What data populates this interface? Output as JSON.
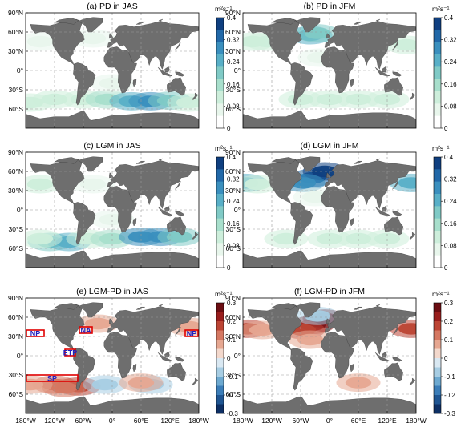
{
  "figure": {
    "panels": [
      {
        "id": "a",
        "title": "(a) PD in JAS",
        "season": "JAS",
        "scale": "seq",
        "unit": "m²s⁻¹",
        "ticks": [
          "0",
          "0.08",
          "0.16",
          "0.24",
          "0.32",
          "0.4"
        ]
      },
      {
        "id": "b",
        "title": "(b) PD in JFM",
        "season": "JFM",
        "scale": "seq",
        "unit": "m²s⁻¹",
        "ticks": [
          "0",
          "0.08",
          "0.16",
          "0.24",
          "0.32",
          "0.4"
        ]
      },
      {
        "id": "c",
        "title": "(c) LGM in JAS",
        "season": "JAS",
        "scale": "seq",
        "unit": "m²s⁻¹",
        "ticks": [
          "0",
          "0.08",
          "0.16",
          "0.24",
          "0.32",
          "0.4"
        ]
      },
      {
        "id": "d",
        "title": "(d) LGM in JFM",
        "season": "JFM",
        "scale": "seq",
        "unit": "m²s⁻¹",
        "ticks": [
          "0",
          "0.08",
          "0.16",
          "0.24",
          "0.32",
          "0.4"
        ]
      },
      {
        "id": "e",
        "title": "(e) LGM-PD in JAS",
        "season": "JAS",
        "scale": "div",
        "unit": "m²s⁻¹",
        "ticks": [
          "-0.3",
          "-0.2",
          "-0.1",
          "0",
          "0.1",
          "0.2",
          "0.3"
        ]
      },
      {
        "id": "f",
        "title": "(f) LGM-PD in JFM",
        "season": "JFM",
        "scale": "div",
        "unit": "m²s⁻¹",
        "ticks": [
          "-0.3",
          "-0.2",
          "-0.1",
          "0",
          "0.1",
          "0.2",
          "0.3"
        ]
      }
    ],
    "lat_ticks": [
      "90°N",
      "60°N",
      "30°N",
      "0°",
      "30°S",
      "60°S"
    ],
    "lon_ticks": [
      "180°W",
      "120°W",
      "60°W",
      "0°",
      "60°E",
      "120°E",
      "180°W"
    ],
    "regions": [
      {
        "label": "NP",
        "lon": [
          -180,
          -140
        ],
        "lat": [
          30,
          40
        ]
      },
      {
        "label": "NA",
        "lon": [
          -70,
          -40
        ],
        "lat": [
          35,
          45
        ]
      },
      {
        "label": "NP",
        "lon": [
          150,
          180
        ],
        "lat": [
          30,
          40
        ]
      },
      {
        "label": "ETP",
        "lon": [
          -100,
          -75
        ],
        "lat": [
          0,
          10
        ]
      },
      {
        "label": "SP",
        "lon": [
          -180,
          -70
        ],
        "lat": [
          -40,
          -30
        ]
      }
    ],
    "colors": {
      "land": "#6e6e6e",
      "seq": [
        "#ffffff",
        "#e8f6ec",
        "#cdeedb",
        "#a8dfcc",
        "#80cac6",
        "#58afc7",
        "#3a8fbe",
        "#2168a8",
        "#0f3f80"
      ],
      "pos": [
        "#f3d8cc",
        "#e6a791",
        "#d57862",
        "#bc4434",
        "#981d1c",
        "#6b0d12"
      ],
      "neg": [
        "#d9e8f2",
        "#a7cde3",
        "#6da9d0",
        "#3b7db8",
        "#1f5592",
        "#0d2f64"
      ],
      "box": "#e00000",
      "label": "#2020c0"
    }
  },
  "chart_data": [
    {
      "panel": "a",
      "type": "heatmap",
      "title": "(a) PD in JAS",
      "unit": "m²s⁻¹",
      "clim": [
        0,
        0.4
      ],
      "xlim": [
        -180,
        180
      ],
      "ylim": [
        -90,
        90
      ],
      "blobs": [
        {
          "lon": -170,
          "lat": -50,
          "value": 0.08
        },
        {
          "lon": -120,
          "lat": -45,
          "value": 0.12
        },
        {
          "lon": -60,
          "lat": -45,
          "value": 0.1
        },
        {
          "lon": -10,
          "lat": -45,
          "value": 0.16
        },
        {
          "lon": 40,
          "lat": -48,
          "value": 0.24
        },
        {
          "lon": 80,
          "lat": -48,
          "value": 0.28
        },
        {
          "lon": 120,
          "lat": -47,
          "value": 0.2
        },
        {
          "lon": 160,
          "lat": -50,
          "value": 0.12
        },
        {
          "lon": -40,
          "lat": 50,
          "value": 0.04
        },
        {
          "lon": -150,
          "lat": 45,
          "value": 0.04
        },
        {
          "lon": 0,
          "lat": -20,
          "value": 0.04
        }
      ]
    },
    {
      "panel": "b",
      "type": "heatmap",
      "title": "(b) PD in JFM",
      "unit": "m²s⁻¹",
      "clim": [
        0,
        0.4
      ],
      "xlim": [
        -180,
        180
      ],
      "ylim": [
        -90,
        90
      ],
      "blobs": [
        {
          "lon": -40,
          "lat": 55,
          "value": 0.24
        },
        {
          "lon": -25,
          "lat": 58,
          "value": 0.2
        },
        {
          "lon": -160,
          "lat": 45,
          "value": 0.12
        },
        {
          "lon": -130,
          "lat": 45,
          "value": 0.08
        },
        {
          "lon": 160,
          "lat": 40,
          "value": 0.1
        },
        {
          "lon": -60,
          "lat": -45,
          "value": 0.08
        },
        {
          "lon": 0,
          "lat": -45,
          "value": 0.08
        },
        {
          "lon": 60,
          "lat": -45,
          "value": 0.1
        },
        {
          "lon": 120,
          "lat": -45,
          "value": 0.08
        },
        {
          "lon": -20,
          "lat": 20,
          "value": 0.04
        }
      ]
    },
    {
      "panel": "c",
      "type": "heatmap",
      "title": "(c) LGM in JAS",
      "unit": "m²s⁻¹",
      "clim": [
        0,
        0.4
      ],
      "xlim": [
        -180,
        180
      ],
      "ylim": [
        -90,
        90
      ],
      "blobs": [
        {
          "lon": -130,
          "lat": -50,
          "value": 0.2
        },
        {
          "lon": -90,
          "lat": -50,
          "value": 0.24
        },
        {
          "lon": -150,
          "lat": -45,
          "value": 0.12
        },
        {
          "lon": -50,
          "lat": -45,
          "value": 0.12
        },
        {
          "lon": 0,
          "lat": -45,
          "value": 0.16
        },
        {
          "lon": 60,
          "lat": -42,
          "value": 0.28
        },
        {
          "lon": 100,
          "lat": -42,
          "value": 0.28
        },
        {
          "lon": 140,
          "lat": -42,
          "value": 0.2
        },
        {
          "lon": -40,
          "lat": 40,
          "value": 0.06
        },
        {
          "lon": -150,
          "lat": 40,
          "value": 0.08
        },
        {
          "lon": 0,
          "lat": -15,
          "value": 0.06
        }
      ]
    },
    {
      "panel": "d",
      "type": "heatmap",
      "title": "(d) LGM in JFM",
      "unit": "m²s⁻¹",
      "clim": [
        0,
        0.4
      ],
      "xlim": [
        -180,
        180
      ],
      "ylim": [
        -90,
        90
      ],
      "blobs": [
        {
          "lon": -35,
          "lat": 50,
          "value": 0.36
        },
        {
          "lon": -10,
          "lat": 60,
          "value": 0.4
        },
        {
          "lon": -55,
          "lat": 42,
          "value": 0.28
        },
        {
          "lon": -175,
          "lat": 42,
          "value": 0.24
        },
        {
          "lon": 170,
          "lat": 42,
          "value": 0.24
        },
        {
          "lon": -150,
          "lat": 40,
          "value": 0.12
        },
        {
          "lon": -90,
          "lat": -45,
          "value": 0.08
        },
        {
          "lon": 0,
          "lat": -45,
          "value": 0.08
        },
        {
          "lon": 60,
          "lat": -45,
          "value": 0.1
        },
        {
          "lon": 120,
          "lat": -45,
          "value": 0.08
        },
        {
          "lon": -30,
          "lat": 20,
          "value": 0.06
        }
      ]
    },
    {
      "panel": "e",
      "type": "heatmap",
      "title": "(e) LGM-PD in JAS",
      "unit": "m²s⁻¹",
      "clim": [
        -0.3,
        0.3
      ],
      "xlim": [
        -180,
        180
      ],
      "ylim": [
        -90,
        90
      ],
      "blobs": [
        {
          "lon": -120,
          "lat": -45,
          "value": 0.12
        },
        {
          "lon": -70,
          "lat": -48,
          "value": 0.16
        },
        {
          "lon": -100,
          "lat": -50,
          "value": 0.1
        },
        {
          "lon": -30,
          "lat": 50,
          "value": 0.08
        },
        {
          "lon": 160,
          "lat": 45,
          "value": 0.06
        },
        {
          "lon": 80,
          "lat": -45,
          "value": -0.06
        },
        {
          "lon": -170,
          "lat": -45,
          "value": 0.06
        },
        {
          "lon": -15,
          "lat": -45,
          "value": -0.08
        },
        {
          "lon": 60,
          "lat": -42,
          "value": 0.05
        }
      ]
    },
    {
      "panel": "f",
      "type": "heatmap",
      "title": "(f) LGM-PD in JFM",
      "unit": "m²s⁻¹",
      "clim": [
        -0.3,
        0.3
      ],
      "xlim": [
        -180,
        180
      ],
      "ylim": [
        -90,
        90
      ],
      "blobs": [
        {
          "lon": -35,
          "lat": 48,
          "value": 0.24
        },
        {
          "lon": -10,
          "lat": 58,
          "value": 0.28
        },
        {
          "lon": -55,
          "lat": 40,
          "value": 0.2
        },
        {
          "lon": -170,
          "lat": 42,
          "value": 0.2
        },
        {
          "lon": 170,
          "lat": 42,
          "value": 0.2
        },
        {
          "lon": -140,
          "lat": 40,
          "value": 0.08
        },
        {
          "lon": -40,
          "lat": 25,
          "value": 0.06
        },
        {
          "lon": -25,
          "lat": 62,
          "value": -0.08
        },
        {
          "lon": 60,
          "lat": -42,
          "value": 0.06
        }
      ]
    }
  ]
}
